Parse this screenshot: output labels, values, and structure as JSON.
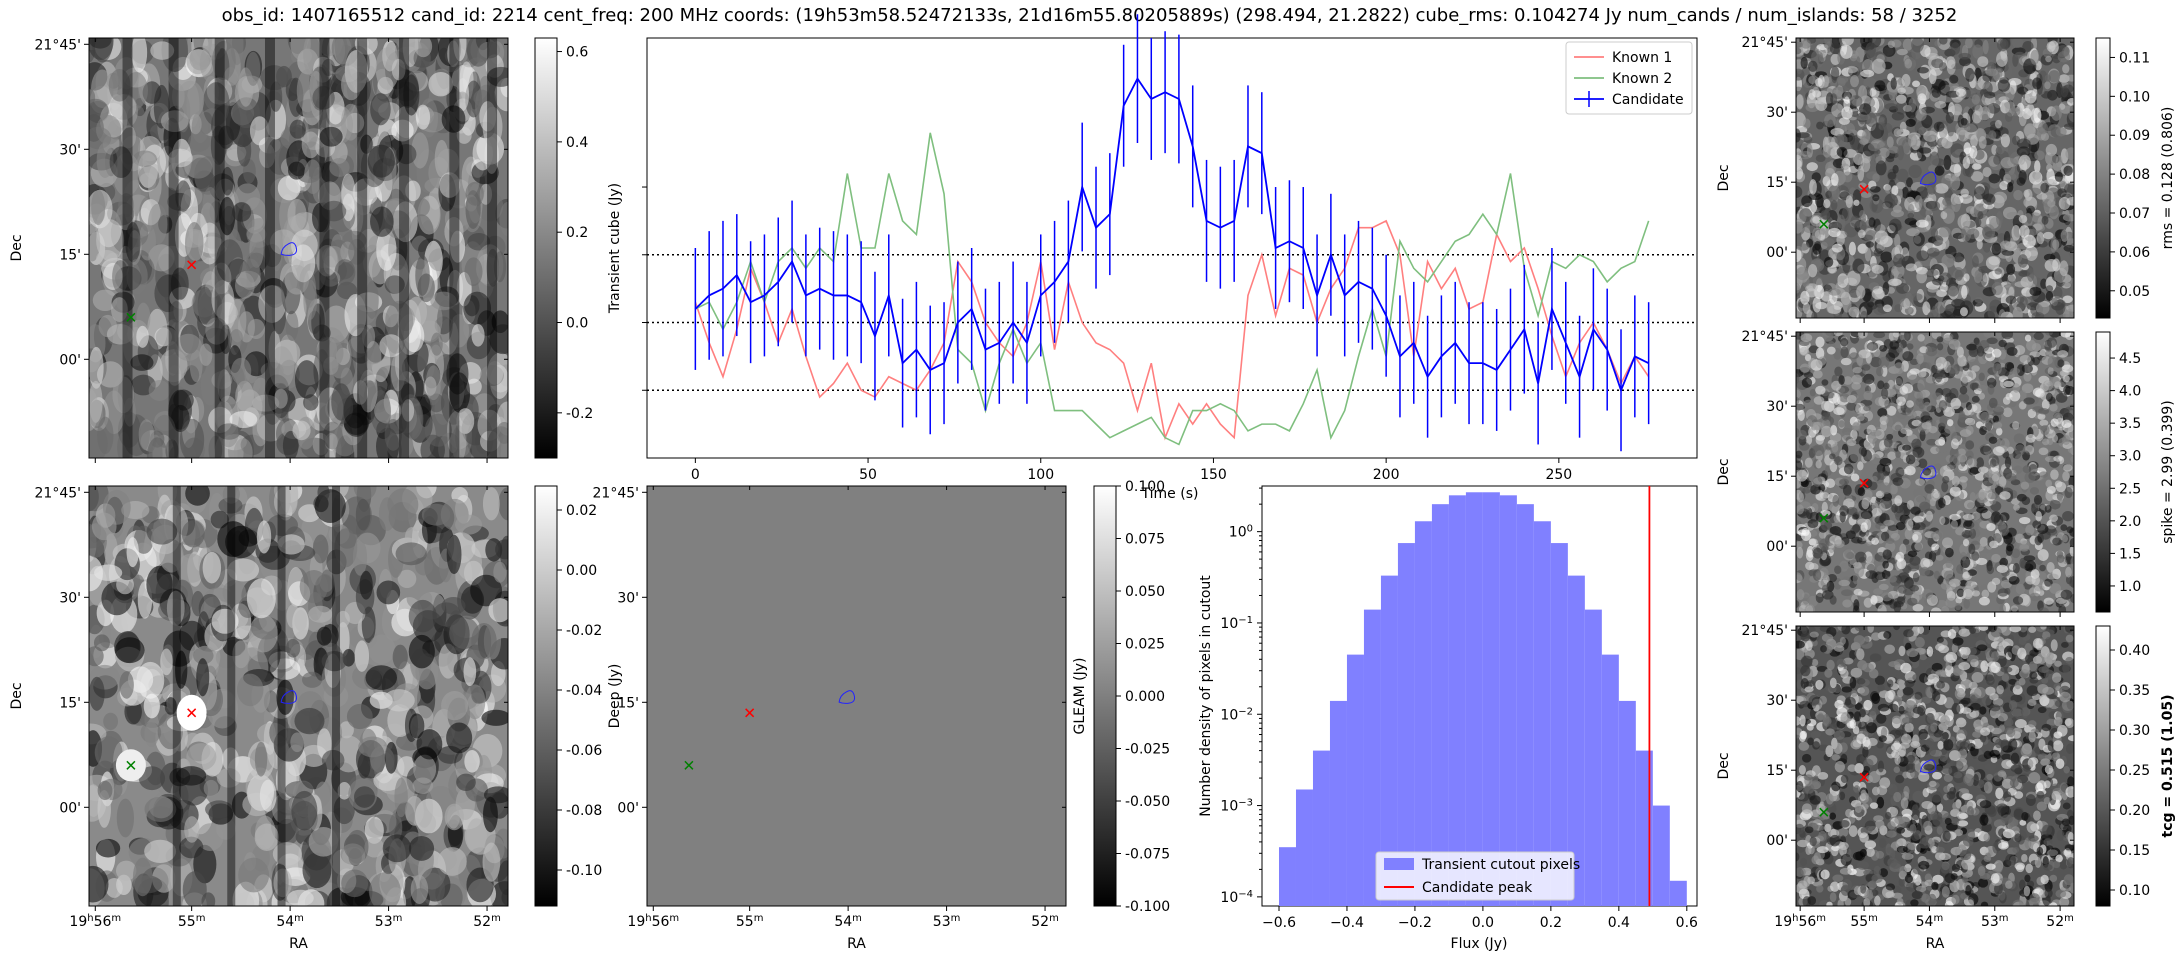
{
  "title": "obs_id: 1407165512 cand_id: 2214 cent_freq: 200 MHz coords: (19h53m58.52472133s, 21d16m55.80205889s) (298.494, 21.2822) cube_rms: 0.104274 Jy num_cands / num_islands: 58 / 3252",
  "colors": {
    "known1": "#ff7f7f",
    "known2": "#7fbf7f",
    "candidate": "#0000ff",
    "hist": "#8080ff",
    "peak": "#ff0000"
  },
  "sky_axes": {
    "dec_ticks": [
      "21°45'",
      "30'",
      "15'",
      "00'"
    ],
    "ra_ticks": [
      "19h56m",
      "55m",
      "54m",
      "53m",
      "52m"
    ],
    "ra_label": "RA",
    "dec_label": "Dec"
  },
  "chart_data": [
    {
      "id": "transient_image",
      "type": "heatmap",
      "colorbar_label": "Transient cube (Jy)",
      "colorbar_ticks": [
        0.6,
        0.4,
        0.2,
        0.0,
        -0.2
      ],
      "colorbar_range": [
        -0.3,
        0.63
      ],
      "markers": [
        {
          "name": "red-x",
          "color": "#ff0000"
        },
        {
          "name": "green-x",
          "color": "#008000"
        }
      ],
      "contour_color": "#0000ff"
    },
    {
      "id": "lightcurve",
      "type": "line",
      "xlabel": "Time (s)",
      "ylabel": "",
      "xlim": [
        -14,
        290
      ],
      "ylim": [
        -2.0,
        4.2
      ],
      "xticks": [
        0,
        50,
        100,
        150,
        200,
        250
      ],
      "hlines": [
        -1.0,
        0.0,
        1.0
      ],
      "x": [
        0,
        4,
        8,
        12,
        16,
        20,
        24,
        28,
        32,
        36,
        40,
        44,
        48,
        52,
        56,
        60,
        64,
        68,
        72,
        76,
        80,
        84,
        88,
        92,
        96,
        100,
        104,
        108,
        112,
        116,
        120,
        124,
        128,
        132,
        136,
        140,
        144,
        148,
        152,
        156,
        160,
        164,
        168,
        172,
        176,
        180,
        184,
        188,
        192,
        196,
        200,
        204,
        208,
        212,
        216,
        220,
        224,
        228,
        232,
        236,
        240,
        244,
        248,
        252,
        256,
        260,
        264,
        268,
        272,
        276
      ],
      "series": [
        {
          "name": "Known 1",
          "values": [
            0.3,
            -0.3,
            -0.8,
            -0.1,
            0.8,
            0.3,
            -0.3,
            0.2,
            -0.5,
            -1.1,
            -0.9,
            -0.6,
            -1.0,
            -1.1,
            -0.8,
            -0.9,
            -1.0,
            -0.7,
            -0.3,
            0.9,
            0.6,
            0.0,
            -0.3,
            -0.5,
            0.0,
            0.9,
            -0.4,
            0.6,
            0.0,
            -0.3,
            -0.4,
            -0.6,
            -1.3,
            -0.6,
            -1.7,
            -1.2,
            -1.5,
            -1.2,
            -1.5,
            -1.7,
            0.4,
            1.0,
            0.1,
            0.8,
            0.7,
            0.0,
            0.5,
            0.8,
            1.4,
            1.4,
            1.5,
            1.0,
            -0.5,
            0.9,
            0.5,
            0.8,
            0.2,
            0.3,
            1.3,
            0.9,
            1.1,
            0.5,
            -0.2,
            -0.8,
            -0.3,
            0.0,
            -0.4,
            -0.9,
            -0.5,
            -0.8
          ]
        },
        {
          "name": "Known 2",
          "values": [
            0.2,
            0.3,
            -0.1,
            0.3,
            0.9,
            0.3,
            0.9,
            1.1,
            0.8,
            1.1,
            0.9,
            2.2,
            1.1,
            1.1,
            2.2,
            1.5,
            1.3,
            2.8,
            1.9,
            -0.4,
            -0.6,
            -1.3,
            -0.6,
            -0.1,
            -0.6,
            -0.3,
            -1.3,
            -1.3,
            -1.3,
            -1.5,
            -1.7,
            -1.6,
            -1.5,
            -1.4,
            -1.7,
            -1.8,
            -1.3,
            -1.3,
            -1.2,
            -1.3,
            -1.6,
            -1.5,
            -1.5,
            -1.6,
            -1.2,
            -0.7,
            -1.7,
            -1.3,
            -0.5,
            0.2,
            -0.5,
            1.2,
            0.8,
            0.6,
            0.9,
            1.2,
            1.3,
            1.6,
            1.3,
            2.2,
            0.8,
            0.1,
            0.9,
            0.8,
            1.0,
            0.9,
            0.6,
            0.8,
            0.9,
            1.5
          ]
        },
        {
          "name": "Candidate",
          "values": [
            0.2,
            0.4,
            0.5,
            0.7,
            0.3,
            0.4,
            0.6,
            0.9,
            0.4,
            0.5,
            0.4,
            0.4,
            0.3,
            -0.2,
            0.4,
            -0.6,
            -0.4,
            -0.7,
            -0.6,
            0.0,
            0.2,
            -0.4,
            -0.3,
            0.0,
            -0.3,
            0.4,
            0.6,
            0.9,
            2.0,
            1.4,
            1.6,
            3.2,
            3.6,
            3.3,
            3.4,
            3.3,
            2.6,
            1.5,
            1.4,
            1.5,
            2.6,
            2.5,
            1.1,
            1.2,
            1.1,
            0.4,
            1.0,
            0.4,
            0.6,
            0.5,
            0.1,
            -0.5,
            -0.3,
            -0.8,
            -0.5,
            -0.3,
            -0.6,
            -0.6,
            -0.7,
            -0.4,
            -0.1,
            -0.9,
            0.2,
            -0.3,
            -0.8,
            -0.1,
            -0.4,
            -1.0,
            -0.5,
            -0.6
          ]
        }
      ],
      "candidate_err": [
        0.9,
        0.95,
        1.0,
        0.9,
        0.9,
        0.9,
        0.95,
        0.9,
        0.9,
        0.9,
        0.95,
        0.9,
        0.9,
        0.95,
        0.9,
        0.95,
        1.0,
        0.95,
        0.9,
        0.9,
        0.9,
        0.9,
        0.9,
        0.9,
        0.9,
        0.9,
        0.9,
        0.9,
        0.95,
        0.9,
        0.9,
        0.9,
        0.95,
        0.9,
        0.9,
        0.95,
        0.9,
        0.9,
        0.9,
        0.9,
        0.9,
        0.9,
        0.9,
        0.9,
        0.9,
        0.9,
        0.9,
        0.9,
        0.9,
        0.9,
        0.9,
        0.9,
        0.9,
        0.9,
        0.9,
        0.9,
        0.9,
        0.9,
        0.9,
        0.9,
        0.95,
        0.9,
        0.9,
        0.9,
        0.9,
        0.9,
        0.9,
        0.9,
        0.9,
        0.9
      ],
      "legend": [
        "Known 1",
        "Known 2",
        "Candidate"
      ],
      "legend_loc": "upper right"
    },
    {
      "id": "rms_image",
      "type": "heatmap",
      "colorbar_label": "rms = 0.128 (0.806)",
      "colorbar_ticks": [
        0.11,
        0.1,
        0.09,
        0.08,
        0.07,
        0.06,
        0.05
      ],
      "colorbar_range": [
        0.043,
        0.115
      ]
    },
    {
      "id": "deep_image",
      "type": "heatmap",
      "colorbar_label": "Deep (Jy)",
      "colorbar_ticks": [
        0.02,
        0.0,
        -0.02,
        -0.04,
        -0.06,
        -0.08,
        -0.1
      ],
      "colorbar_range": [
        -0.112,
        0.028
      ]
    },
    {
      "id": "gleam_image",
      "type": "heatmap",
      "colorbar_label": "GLEAM (Jy)",
      "colorbar_ticks": [
        "0.100",
        "0.075",
        "0.050",
        "0.025",
        "0.000",
        "-0.025",
        "-0.050",
        "-0.075",
        "-0.100"
      ],
      "colorbar_range": [
        -0.1,
        0.1
      ],
      "fill_value": 0.0
    },
    {
      "id": "histogram",
      "type": "bar",
      "xlabel": "Flux (Jy)",
      "ylabel": "Number density of pixels in cutout",
      "xlim": [
        -0.65,
        0.63
      ],
      "ylog": true,
      "ylim_exp": [
        -4.1,
        0.5
      ],
      "xticks": [
        "-0.6",
        "-0.4",
        "-0.2",
        "0.0",
        "0.2",
        "0.4",
        "0.6"
      ],
      "yticks_exp": [
        0,
        -1,
        -2,
        -3,
        -4
      ],
      "bin_edges": [
        -0.6,
        -0.55,
        -0.5,
        -0.45,
        -0.4,
        -0.35,
        -0.3,
        -0.25,
        -0.2,
        -0.15,
        -0.1,
        -0.05,
        0.0,
        0.05,
        0.1,
        0.15,
        0.2,
        0.25,
        0.3,
        0.35,
        0.4,
        0.45,
        0.5,
        0.55,
        0.6
      ],
      "values": [
        0.00035,
        0.0015,
        0.004,
        0.014,
        0.045,
        0.14,
        0.33,
        0.75,
        1.3,
        2.0,
        2.5,
        2.7,
        2.7,
        2.5,
        2.0,
        1.3,
        0.75,
        0.33,
        0.14,
        0.045,
        0.014,
        0.004,
        0.001,
        0.00015
      ],
      "candidate_peak": 0.49,
      "legend": [
        "Transient cutout pixels",
        "Candidate peak"
      ],
      "legend_loc": "lower center"
    },
    {
      "id": "spike_image",
      "type": "heatmap",
      "colorbar_label": "spike = 2.99 (0.399)",
      "colorbar_ticks": [
        4.5,
        4.0,
        3.5,
        3.0,
        2.5,
        2.0,
        1.5,
        1.0
      ],
      "colorbar_range": [
        0.6,
        4.9
      ]
    },
    {
      "id": "tcg_image",
      "type": "heatmap",
      "colorbar_label": "tcg = 0.515 (1.05)",
      "colorbar_ticks": [
        0.4,
        0.35,
        0.3,
        0.25,
        0.2,
        0.15,
        0.1
      ],
      "colorbar_range": [
        0.08,
        0.43
      ]
    }
  ]
}
